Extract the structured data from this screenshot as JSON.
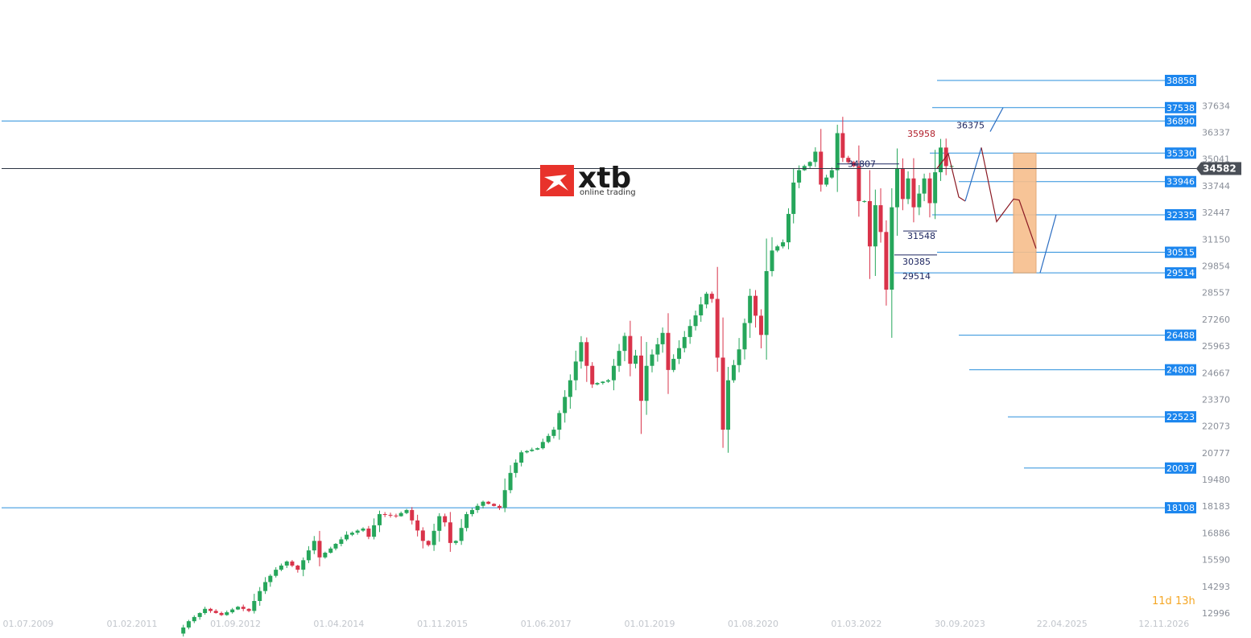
{
  "chart_data": {
    "type": "candlestick",
    "title": "",
    "y_axis": {
      "position": "right",
      "ticks": [
        "37634",
        "36337",
        "35041",
        "33744",
        "32447",
        "31150",
        "29854",
        "28557",
        "27260",
        "25963",
        "24667",
        "23370",
        "22073",
        "20777",
        "19480",
        "18183",
        "16886",
        "15590",
        "14293",
        "12996"
      ]
    },
    "x_axis": {
      "ticks": [
        "01.07.2009",
        "01.02.2011",
        "01.09.2012",
        "01.04.2014",
        "01.11.2015",
        "01.06.2017",
        "01.01.2019",
        "01.08.2020",
        "01.03.2022",
        "30.09.2023",
        "22.04.2025",
        "12.11.2026"
      ]
    },
    "current_price": "34582",
    "levels": [
      {
        "label": "38858",
        "value": 38858
      },
      {
        "label": "37538",
        "value": 37538
      },
      {
        "label": "36890",
        "value": 36890
      },
      {
        "label": "35330",
        "value": 35330
      },
      {
        "label": "33946",
        "value": 33946
      },
      {
        "label": "32335",
        "value": 32335
      },
      {
        "label": "30515",
        "value": 30515
      },
      {
        "label": "29514",
        "value": 29514
      },
      {
        "label": "26488",
        "value": 26488
      },
      {
        "label": "24808",
        "value": 24808
      },
      {
        "label": "22523",
        "value": 22523
      },
      {
        "label": "20037",
        "value": 20037
      },
      {
        "label": "18108",
        "value": 18108
      }
    ],
    "annotations": [
      {
        "text": "35958",
        "value": 35958,
        "color": "red"
      },
      {
        "text": "36375",
        "value": 36375,
        "color": "navy"
      },
      {
        "text": "34807",
        "value": 34807,
        "color": "black"
      },
      {
        "text": "31548",
        "value": 31548,
        "color": "navy"
      },
      {
        "text": "30385",
        "value": 30385,
        "color": "navy"
      },
      {
        "text": "29514",
        "value": 29514,
        "color": "navy"
      }
    ],
    "zone": {
      "from": 29514,
      "to": 35330,
      "color": "#f7be8c"
    },
    "colors": {
      "up": "#26a65b",
      "down": "#d9334a",
      "level_line": "#2a8fdc",
      "level_label_bg": "#1c86ee",
      "current_bg": "#4a4f57",
      "projection_red": "#8b1a24",
      "projection_blue": "#2e6fc2"
    }
  },
  "logo": {
    "word": "xtb",
    "tagline": "online trading",
    "mark_color": "#e8322b"
  },
  "timer": {
    "days": "11",
    "days_unit": "d",
    "hours": "13",
    "hours_unit": "h"
  }
}
